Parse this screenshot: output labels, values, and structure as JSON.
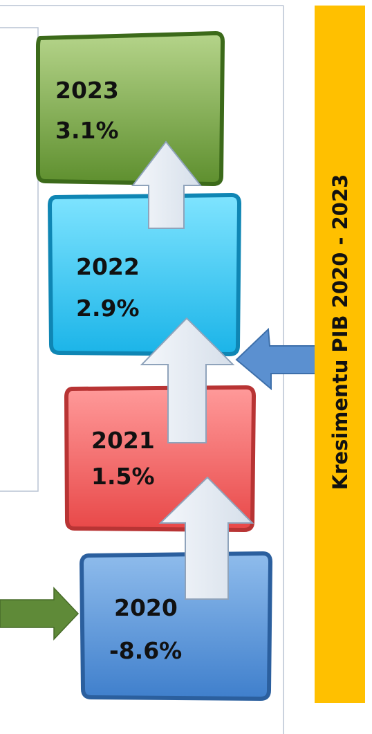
{
  "title": "Kresimentu PIB 2020 - 2023",
  "boxes": [
    {
      "year": "2023",
      "value": "3.1%"
    },
    {
      "year": "2022",
      "value": "2.9%"
    },
    {
      "year": "2021",
      "value": "1.5%"
    },
    {
      "year": "2020",
      "value": "-8.6%"
    }
  ]
}
